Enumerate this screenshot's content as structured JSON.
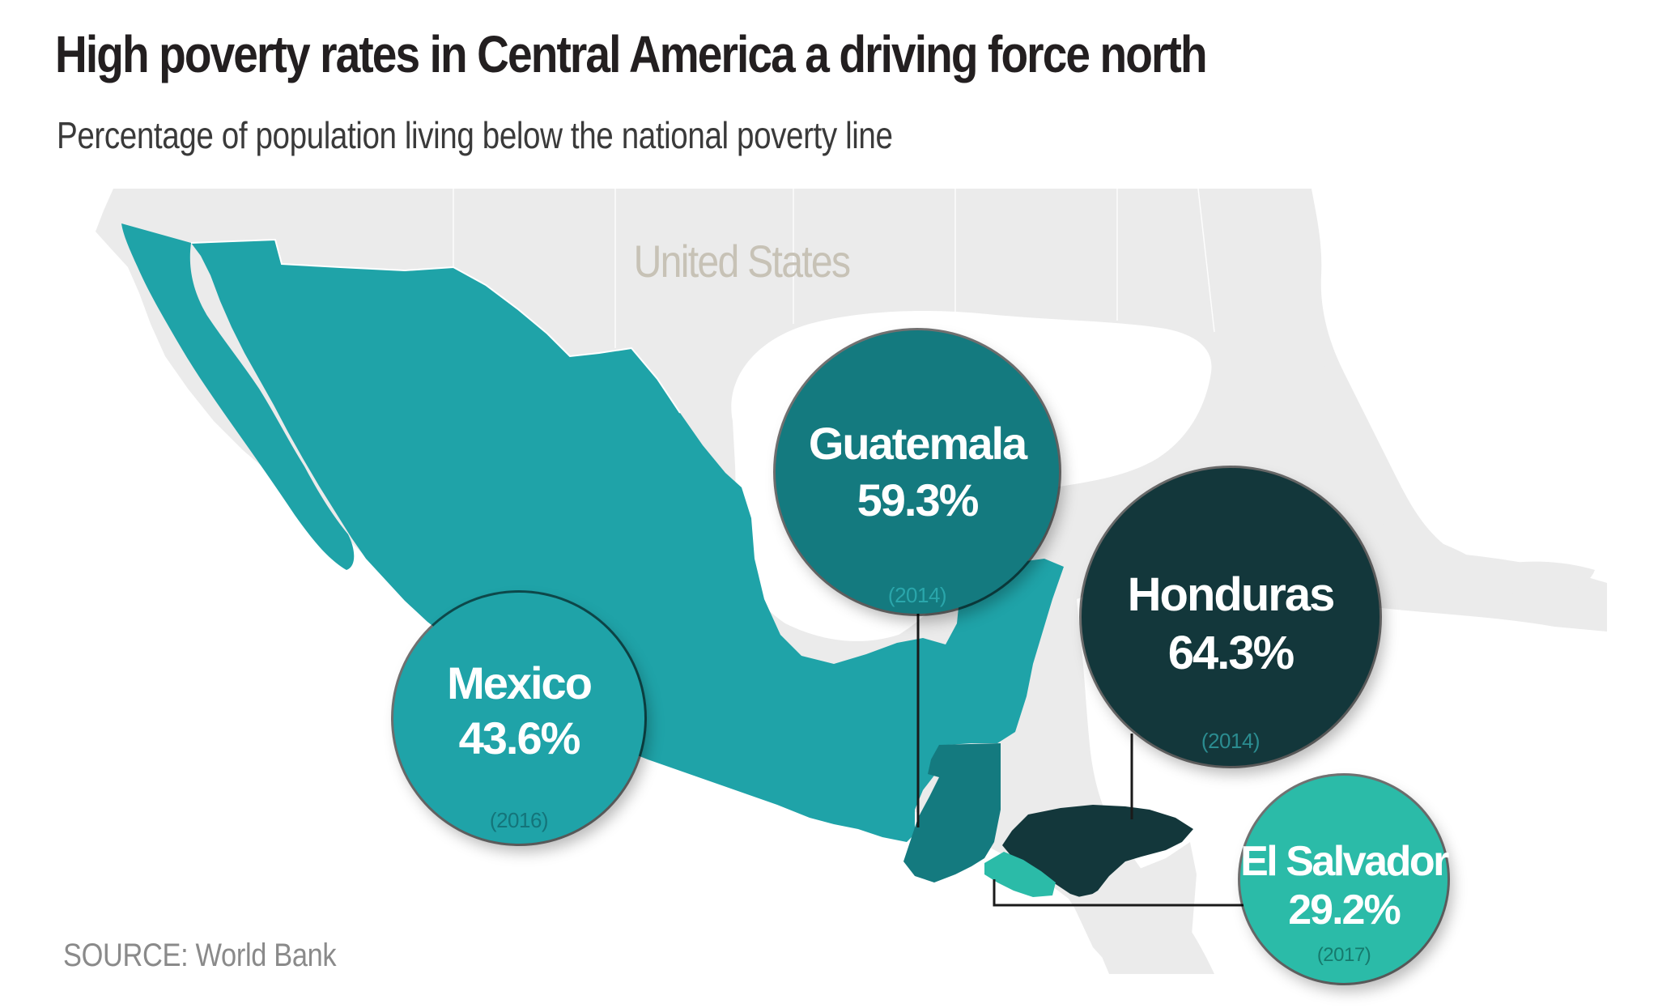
{
  "title": "High poverty rates in Central America a driving force north",
  "subtitle": "Percentage of population living below the national poverty line",
  "map_label": "United States",
  "source": "SOURCE: World Bank",
  "countries": {
    "mexico": {
      "name": "Mexico",
      "value": "43.6%",
      "year": "(2016)",
      "color": "#1fa3a8"
    },
    "guatemala": {
      "name": "Guatemala",
      "value": "59.3%",
      "year": "(2014)",
      "color": "#147a7f"
    },
    "honduras": {
      "name": "Honduras",
      "value": "64.3%",
      "year": "(2014)",
      "color": "#13373b"
    },
    "el_salvador": {
      "name": "El Salvador",
      "value": "29.2%",
      "year": "(2017)",
      "color": "#2bbba8"
    }
  },
  "colors": {
    "land": "#ebebeb",
    "water": "#ffffff",
    "title": "#231f20",
    "source": "#8a8a8a"
  }
}
